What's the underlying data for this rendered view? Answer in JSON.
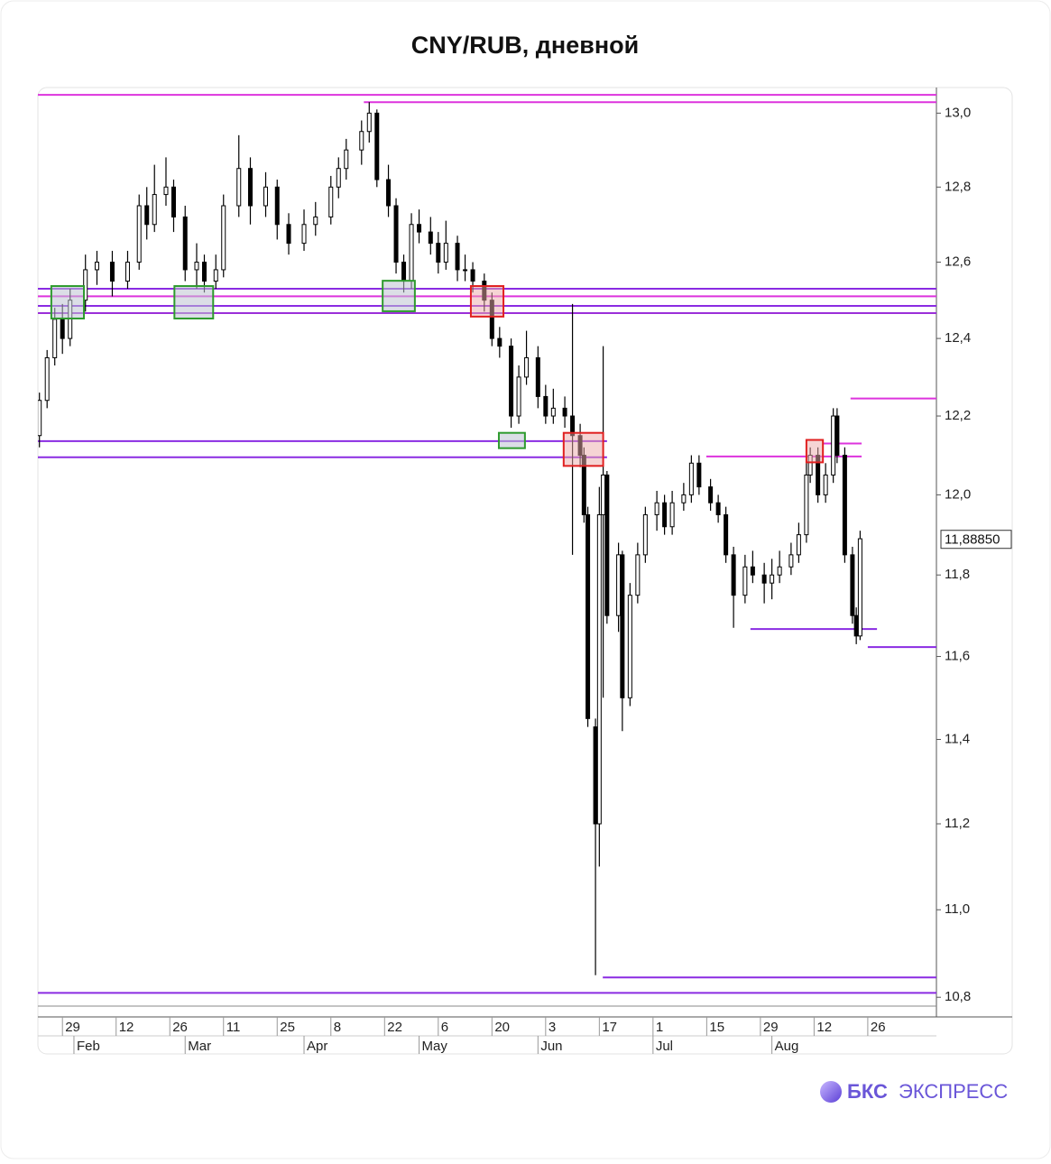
{
  "chart_data": {
    "type": "candlestick",
    "title": "CNY/RUB, дневной",
    "x": [
      23,
      25,
      27,
      29,
      31,
      35,
      38,
      42,
      46,
      49,
      51,
      53,
      56,
      58,
      61,
      64,
      66,
      69,
      71,
      75,
      78,
      82,
      85,
      88,
      92,
      95,
      99,
      101,
      103,
      107,
      109,
      111,
      114,
      116,
      118,
      120,
      122,
      125,
      127,
      129,
      132,
      134,
      136,
      139,
      141,
      143,
      146,
      148,
      150,
      153,
      155,
      157,
      160,
      162,
      164,
      165,
      166,
      168,
      169,
      170,
      171,
      174,
      175,
      177,
      179,
      181,
      184,
      186,
      188,
      191,
      193,
      195,
      198,
      200,
      202,
      204,
      207,
      209,
      212,
      214,
      216,
      219,
      221,
      223,
      224,
      226,
      228,
      230,
      231,
      233,
      235,
      236,
      237
    ],
    "open": [
      12.15,
      12.24,
      12.35,
      12.45,
      12.4,
      12.5,
      12.58,
      12.6,
      12.55,
      12.6,
      12.75,
      12.7,
      12.78,
      12.8,
      12.72,
      12.58,
      12.6,
      12.55,
      12.58,
      12.75,
      12.85,
      12.75,
      12.8,
      12.7,
      12.65,
      12.7,
      12.72,
      12.8,
      12.85,
      12.9,
      12.95,
      13.0,
      12.82,
      12.75,
      12.6,
      12.55,
      12.7,
      12.68,
      12.65,
      12.6,
      12.65,
      12.58,
      12.58,
      12.55,
      12.5,
      12.4,
      12.38,
      12.2,
      12.3,
      12.35,
      12.25,
      12.2,
      12.22,
      12.2,
      12.15,
      12.1,
      11.95,
      11.43,
      11.2,
      11.95,
      12.05,
      11.7,
      11.85,
      11.5,
      11.75,
      11.85,
      11.95,
      11.98,
      11.92,
      11.98,
      12.0,
      12.08,
      12.02,
      11.98,
      11.95,
      11.85,
      11.75,
      11.82,
      11.8,
      11.78,
      11.8,
      11.82,
      11.85,
      11.9,
      12.05,
      12.1,
      12.0,
      12.05,
      12.2,
      12.1,
      11.85,
      11.7,
      11.65
    ],
    "high": [
      12.26,
      12.37,
      12.48,
      12.49,
      12.53,
      12.62,
      12.63,
      12.63,
      12.63,
      12.78,
      12.8,
      12.86,
      12.88,
      12.82,
      12.75,
      12.65,
      12.62,
      12.62,
      12.78,
      12.94,
      12.88,
      12.84,
      12.82,
      12.73,
      12.74,
      12.76,
      12.83,
      12.88,
      12.93,
      12.98,
      13.03,
      13.01,
      12.86,
      12.77,
      12.62,
      12.73,
      12.74,
      12.72,
      12.68,
      12.71,
      12.67,
      12.62,
      12.6,
      12.57,
      12.52,
      12.43,
      12.4,
      12.33,
      12.42,
      12.38,
      12.28,
      12.27,
      12.25,
      12.49,
      12.18,
      12.12,
      11.97,
      11.45,
      12.02,
      12.38,
      12.06,
      11.88,
      11.86,
      11.78,
      11.88,
      11.97,
      12.01,
      12.0,
      12.01,
      12.03,
      12.1,
      12.1,
      12.04,
      12.0,
      11.97,
      11.87,
      11.85,
      11.86,
      11.83,
      11.84,
      11.86,
      11.88,
      11.93,
      12.08,
      12.12,
      12.12,
      12.08,
      12.22,
      12.22,
      12.12,
      11.87,
      11.72,
      11.91
    ],
    "low": [
      12.12,
      12.22,
      12.33,
      12.36,
      12.38,
      12.47,
      12.54,
      12.51,
      12.53,
      12.58,
      12.66,
      12.68,
      12.75,
      12.68,
      12.55,
      12.53,
      12.52,
      12.53,
      12.56,
      12.72,
      12.7,
      12.72,
      12.66,
      12.62,
      12.63,
      12.67,
      12.7,
      12.77,
      12.82,
      12.86,
      12.92,
      12.8,
      12.72,
      12.57,
      12.52,
      12.53,
      12.65,
      12.62,
      12.57,
      12.58,
      12.55,
      12.55,
      12.52,
      12.47,
      12.38,
      12.35,
      12.17,
      12.18,
      12.28,
      12.22,
      12.18,
      12.18,
      12.17,
      11.85,
      12.07,
      11.93,
      11.43,
      10.85,
      11.1,
      11.5,
      11.68,
      11.66,
      11.42,
      11.48,
      11.73,
      11.83,
      11.91,
      11.9,
      11.9,
      11.96,
      11.98,
      12.0,
      11.96,
      11.93,
      11.83,
      11.67,
      11.73,
      11.78,
      11.73,
      11.74,
      11.78,
      11.8,
      11.83,
      11.88,
      12.03,
      11.98,
      11.98,
      12.03,
      12.08,
      11.83,
      11.68,
      11.63,
      11.64
    ],
    "close": [
      12.24,
      12.35,
      12.45,
      12.4,
      12.5,
      12.58,
      12.6,
      12.55,
      12.6,
      12.75,
      12.7,
      12.78,
      12.8,
      12.72,
      12.58,
      12.6,
      12.55,
      12.58,
      12.75,
      12.85,
      12.75,
      12.8,
      12.7,
      12.65,
      12.7,
      12.72,
      12.8,
      12.85,
      12.9,
      12.95,
      13.0,
      12.82,
      12.75,
      12.6,
      12.55,
      12.7,
      12.68,
      12.65,
      12.6,
      12.65,
      12.58,
      12.58,
      12.55,
      12.5,
      12.4,
      12.38,
      12.2,
      12.3,
      12.35,
      12.25,
      12.2,
      12.22,
      12.2,
      12.15,
      12.1,
      11.95,
      11.45,
      11.2,
      11.95,
      12.05,
      11.7,
      11.85,
      11.5,
      11.75,
      11.85,
      11.95,
      11.98,
      11.92,
      11.98,
      12.0,
      12.08,
      12.02,
      11.98,
      11.95,
      11.85,
      11.75,
      11.82,
      11.8,
      11.78,
      11.8,
      11.82,
      11.85,
      11.9,
      12.05,
      12.1,
      12.0,
      12.05,
      12.2,
      12.1,
      11.85,
      11.7,
      11.65,
      11.89
    ],
    "up_color": "#ffffff",
    "down_color": "#000000",
    "xlim": [
      22.6,
      256.9
    ],
    "xticks": [
      29,
      {
        "value": 43,
        "label": "12"
      },
      {
        "value": 57,
        "label": "26"
      },
      {
        "value": 71,
        "label": "11"
      },
      {
        "value": 85,
        "label": "25"
      },
      {
        "value": 99,
        "label": "8"
      },
      {
        "value": 113,
        "label": "22"
      },
      {
        "value": 127,
        "label": "6"
      },
      {
        "value": 141,
        "label": "20"
      },
      {
        "value": 155,
        "label": "3"
      },
      {
        "value": 169,
        "label": "17"
      },
      {
        "value": 183,
        "label": "1"
      },
      {
        "value": 197,
        "label": "15"
      },
      {
        "value": 211,
        "label": "29"
      },
      {
        "value": 225,
        "label": "12"
      },
      {
        "value": 239,
        "label": "26"
      }
    ],
    "month_ticks": [
      {
        "value": 32,
        "label": "Feb"
      },
      {
        "value": 61,
        "label": "Mar"
      },
      {
        "value": 92,
        "label": "Apr"
      },
      {
        "value": 122,
        "label": "May"
      },
      {
        "value": 153,
        "label": "Jun"
      },
      {
        "value": 183,
        "label": "Jul"
      },
      {
        "value": 214,
        "label": "Aug"
      }
    ],
    "ylim": [
      10.78,
      13.07
    ],
    "log_scale": true,
    "yticks": [
      {
        "value": 13.0,
        "label": "13,0"
      },
      {
        "value": 12.8,
        "label": "12,8"
      },
      {
        "value": 12.6,
        "label": "12,6"
      },
      {
        "value": 12.4,
        "label": "12,4"
      },
      {
        "value": 12.2,
        "label": "12,2"
      },
      {
        "value": 12.0,
        "label": "12,0"
      },
      {
        "value": 11.8,
        "label": "11,8"
      },
      {
        "value": 11.6,
        "label": "11,6"
      },
      {
        "value": 11.4,
        "label": "11,4"
      },
      {
        "value": 11.2,
        "label": "11,2"
      },
      {
        "value": 11.0,
        "label": "11,0"
      },
      {
        "value": 10.8,
        "label": "10,8"
      }
    ],
    "levels": [
      {
        "value": 13.05,
        "color": "#dd33dd"
      },
      {
        "value": 13.03,
        "color": "#dd33dd",
        "x_start": 107.6
      },
      {
        "value": 12.53,
        "color": "#8a2be2"
      },
      {
        "value": 12.51,
        "color": "#dd33dd"
      },
      {
        "value": 12.485,
        "color": "#8a2be2"
      },
      {
        "value": 12.466,
        "color": "#9b30d8"
      },
      {
        "value": 12.245,
        "color": "#dd33dd",
        "x_start": 234.5
      },
      {
        "value": 12.136,
        "color": "#8a2be2",
        "x_end": 171
      },
      {
        "value": 12.13,
        "color": "#dd33dd",
        "x_start": 227.3,
        "x_end": 237.4
      },
      {
        "value": 12.097,
        "color": "#dd33dd",
        "x_start": 196.9,
        "x_end": 237.4
      },
      {
        "value": 12.095,
        "color": "#8a2be2",
        "x_end": 171
      },
      {
        "value": 11.667,
        "color": "#8a2be2",
        "x_start": 208.4,
        "x_end": 241.4
      },
      {
        "value": 11.623,
        "color": "#8a2be2",
        "x_start": 239
      },
      {
        "value": 10.845,
        "color": "#8a2be2",
        "x_start": 169.9
      },
      {
        "value": 10.81,
        "color": "#8a2be2"
      }
    ],
    "zones": [
      {
        "x": [
          26.1,
          34.6
        ],
        "y": [
          12.452,
          12.537
        ],
        "color": "#2e9b2e",
        "fill": "rgba(190,195,210,0.55)"
      },
      {
        "x": [
          58.2,
          68.3
        ],
        "y": [
          12.452,
          12.537
        ],
        "color": "#2e9b2e",
        "fill": "rgba(190,195,210,0.55)"
      },
      {
        "x": [
          112.5,
          120.9
        ],
        "y": [
          12.471,
          12.551
        ],
        "color": "#2e9b2e",
        "fill": "rgba(190,195,210,0.55)"
      },
      {
        "x": [
          135.5,
          144.0
        ],
        "y": [
          12.457,
          12.537
        ],
        "color": "#e02020",
        "fill": "rgba(235,170,170,0.5)"
      },
      {
        "x": [
          142.8,
          149.6
        ],
        "y": [
          12.118,
          12.157
        ],
        "color": "#2e9b2e",
        "fill": "rgba(190,195,210,0.55)"
      },
      {
        "x": [
          159.7,
          170.0
        ],
        "y": [
          12.073,
          12.157
        ],
        "color": "#e02020",
        "fill": "rgba(235,170,170,0.5)"
      },
      {
        "x": [
          223.0,
          227.3
        ],
        "y": [
          12.082,
          12.139
        ],
        "color": "#e02020",
        "fill": "rgba(235,170,170,0.5)"
      }
    ],
    "last_price": {
      "value": 11.8885,
      "label": "11,88850"
    }
  },
  "logo": {
    "brand": "БКС",
    "product": "ЭКСПРЕСС"
  }
}
